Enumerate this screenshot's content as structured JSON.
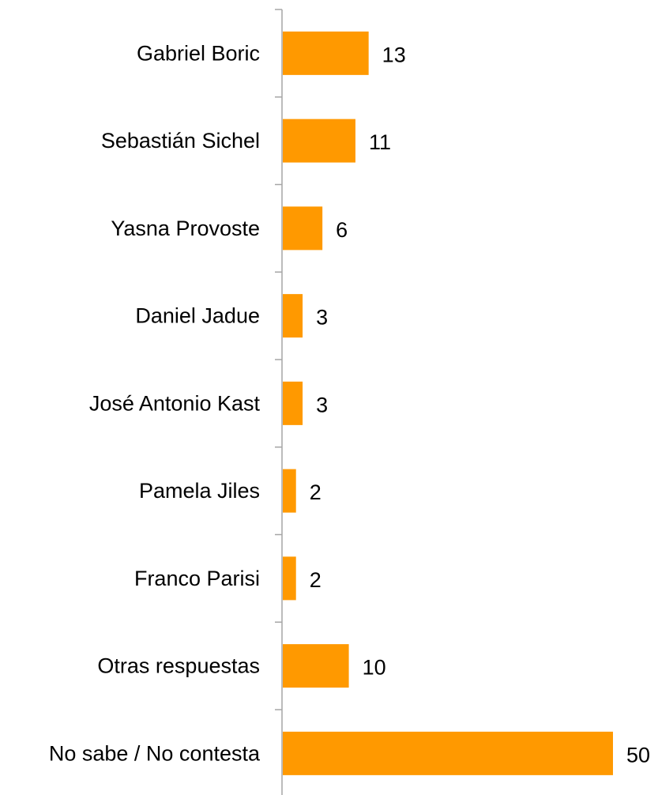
{
  "chart_data": {
    "type": "bar",
    "orientation": "horizontal",
    "title": "",
    "xlabel": "",
    "ylabel": "",
    "categories": [
      "Gabriel Boric",
      "Sebastián Sichel",
      "Yasna Provoste",
      "Daniel Jadue",
      "José Antonio Kast",
      "Pamela Jiles",
      "Franco Parisi",
      "Otras respuestas",
      "No sabe / No contesta"
    ],
    "values": [
      13,
      11,
      6,
      3,
      3,
      2,
      2,
      10,
      50
    ],
    "value_labels": [
      "13",
      "11",
      "6",
      "3",
      "3",
      "2",
      "2",
      "10",
      "50"
    ],
    "xlim": [
      0,
      50
    ],
    "grid": false,
    "legend": "none",
    "bar_color": "#FF9900"
  }
}
